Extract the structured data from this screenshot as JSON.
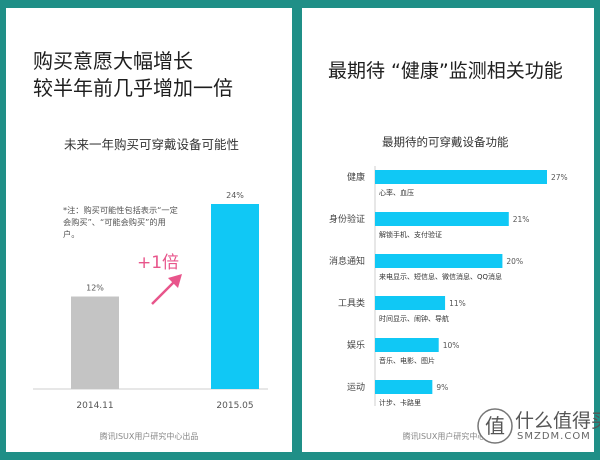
{
  "left_panel": {
    "headline": [
      "购买意愿大幅增长",
      "较半年前几乎增加一倍"
    ],
    "chart_title": "未来一年购买可穿戴设备可能性",
    "note": "*注：购买可能性包括表示“一定会购买”、“可能会购买”的用户。",
    "multiplier_label": "+1倍",
    "footer": "腾讯ISUX用户研究中心出品"
  },
  "right_panel": {
    "headline": "最期待 “健康”监测相关功能",
    "chart_title": "最期待的可穿戴设备功能",
    "footer": "腾讯ISUX用户研究中心出"
  },
  "watermark": {
    "text": "什么值得买",
    "sub": "SMZDM.COM"
  },
  "chart_data": [
    {
      "type": "bar",
      "title": "未来一年购买可穿戴设备可能性",
      "categories": [
        "2014.11",
        "2015.05"
      ],
      "values": [
        12,
        24
      ],
      "value_labels": [
        "12%",
        "24%"
      ],
      "colors": [
        "#c4c4c4",
        "#10c8f5"
      ],
      "ylim": [
        0,
        24
      ],
      "annotation": "+1倍"
    },
    {
      "type": "bar",
      "orientation": "horizontal",
      "title": "最期待的可穿戴设备功能",
      "categories": [
        "健康",
        "身份验证",
        "消息通知",
        "工具类",
        "娱乐",
        "运动"
      ],
      "values": [
        27,
        21,
        20,
        11,
        10,
        9
      ],
      "value_labels": [
        "27%",
        "21%",
        "20%",
        "11%",
        "10%",
        "9%"
      ],
      "descriptions": [
        "心率、血压",
        "解锁手机、支付验证",
        "来电显示、短信息、微信消息、QQ消息",
        "时间显示、闹钟、导航",
        "音乐、电影、图片",
        "计步、卡路里"
      ],
      "color": "#10c8f5",
      "xlim": [
        0,
        27
      ]
    }
  ]
}
